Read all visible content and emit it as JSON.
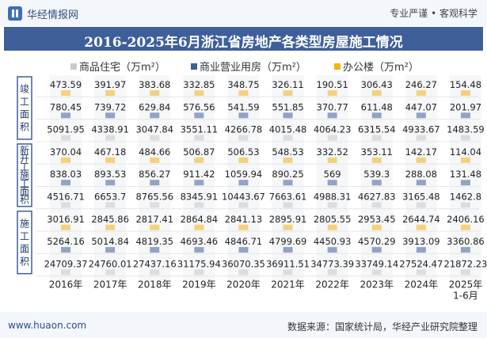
{
  "header": {
    "site_name": "华经情报网",
    "slogan": "专业严谨 • 客观科学",
    "title": "2016-2025年6月浙江省房地产各类型房屋施工情况"
  },
  "footer": {
    "url": "www.huaon.com",
    "source": "数据来源：国家统计局，华经产业研究院整理"
  },
  "chart_data": {
    "type": "table",
    "title": "2016-2025年6月浙江省房地产各类型房屋施工情况",
    "categories": [
      "2016年",
      "2017年",
      "2018年",
      "2019年",
      "2020年",
      "2021年",
      "2022年",
      "2023年",
      "2024年",
      "2025年\n1-6月"
    ],
    "series": [
      {
        "name": "商品住宅（万m²）",
        "color": "#c9c9c9"
      },
      {
        "name": "商业营业用房（万m²）",
        "color": "#3f5f98"
      },
      {
        "name": "办公楼（万m²）",
        "color": "#f2b318"
      }
    ],
    "groups": [
      {
        "name": "竣工面积",
        "rows": [
          {
            "series": "办公楼（万m²）",
            "values": [
              473.59,
              391.97,
              383.68,
              332.85,
              348.75,
              326.11,
              190.51,
              306.43,
              246.27,
              154.48
            ]
          },
          {
            "series": "商业营业用房（万m²）",
            "values": [
              780.45,
              739.72,
              629.84,
              576.56,
              541.59,
              551.85,
              370.77,
              611.48,
              447.07,
              201.97
            ]
          },
          {
            "series": "商品住宅（万m²）",
            "values": [
              5091.95,
              4338.91,
              3047.84,
              3551.11,
              4266.78,
              4015.48,
              4064.23,
              6315.54,
              4933.67,
              1483.59
            ]
          }
        ]
      },
      {
        "name": "新开工施工面积",
        "rows": [
          {
            "series": "办公楼（万m²）",
            "values": [
              370.04,
              467.18,
              484.66,
              506.87,
              506.53,
              548.53,
              332.52,
              353.11,
              142.17,
              114.04
            ]
          },
          {
            "series": "商业营业用房（万m²）",
            "values": [
              838.03,
              893.53,
              856.27,
              911.42,
              1059.94,
              890.25,
              569,
              539.3,
              288.08,
              131.48
            ]
          },
          {
            "series": "商品住宅（万m²）",
            "values": [
              4516.71,
              6653.7,
              8765.56,
              8345.91,
              10443.67,
              7663.61,
              4988.31,
              4627.83,
              3165.48,
              1462.8
            ]
          }
        ]
      },
      {
        "name": "施工面积",
        "rows": [
          {
            "series": "办公楼（万m²）",
            "values": [
              3016.91,
              2845.86,
              2817.41,
              2864.84,
              2841.13,
              2895.91,
              2805.55,
              2953.45,
              2644.74,
              2406.16
            ]
          },
          {
            "series": "商业营业用房（万m²）",
            "values": [
              5264.16,
              5014.84,
              4819.35,
              4693.46,
              4846.71,
              4799.69,
              4450.93,
              4570.29,
              3913.09,
              3360.86
            ]
          },
          {
            "series": "商品住宅（万m²）",
            "values": [
              24709.37,
              24760.01,
              27437.16,
              31175.94,
              36070.35,
              36911.51,
              34773.39,
              33749.14,
              27524.47,
              21872.23
            ]
          }
        ]
      }
    ]
  }
}
